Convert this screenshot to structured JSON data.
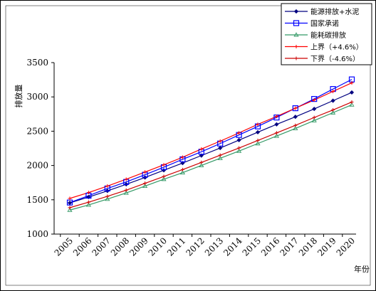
{
  "chart_data": {
    "type": "line",
    "title": "",
    "xlabel": "年份",
    "ylabel": "排放量",
    "x": [
      "2005",
      "2006",
      "2007",
      "2008",
      "2009",
      "2010",
      "2011",
      "2012",
      "2013",
      "2014",
      "2015",
      "2016",
      "2017",
      "2018",
      "2019",
      "2020"
    ],
    "ylim": [
      1000,
      3500
    ],
    "yticks": [
      1000,
      1500,
      2000,
      2500,
      3000,
      3500
    ],
    "grid": false,
    "legend_position": "top-right",
    "series": [
      {
        "name": "能源排放+水泥",
        "color": "#000080",
        "marker": "diamond",
        "values": [
          1455,
          1540,
          1630,
          1725,
          1825,
          1930,
          2035,
          2145,
          2255,
          2370,
          2485,
          2600,
          2710,
          2825,
          2945,
          3065
        ]
      },
      {
        "name": "国家承诺",
        "color": "#0000ff",
        "marker": "square",
        "values": [
          1460,
          1560,
          1665,
          1760,
          1865,
          1975,
          2090,
          2200,
          2320,
          2445,
          2570,
          2700,
          2835,
          2970,
          3115,
          3255
        ]
      },
      {
        "name": "能耗碳排放",
        "color": "#339966",
        "marker": "triangle",
        "values": [
          1350,
          1425,
          1510,
          1600,
          1700,
          1800,
          1895,
          2000,
          2105,
          2210,
          2320,
          2430,
          2540,
          2655,
          2770,
          2885
        ]
      },
      {
        "name": "上界（+4.6%）",
        "color": "#ff0000",
        "marker": "plus",
        "values": [
          1520,
          1605,
          1700,
          1800,
          1905,
          2010,
          2120,
          2240,
          2355,
          2475,
          2600,
          2715,
          2835,
          2955,
          3080,
          3205
        ]
      },
      {
        "name": "下界（-4.6%）",
        "color": "#cc0000",
        "marker": "plus",
        "values": [
          1385,
          1465,
          1550,
          1640,
          1740,
          1840,
          1940,
          2045,
          2150,
          2255,
          2365,
          2475,
          2585,
          2700,
          2810,
          2925
        ]
      }
    ]
  }
}
